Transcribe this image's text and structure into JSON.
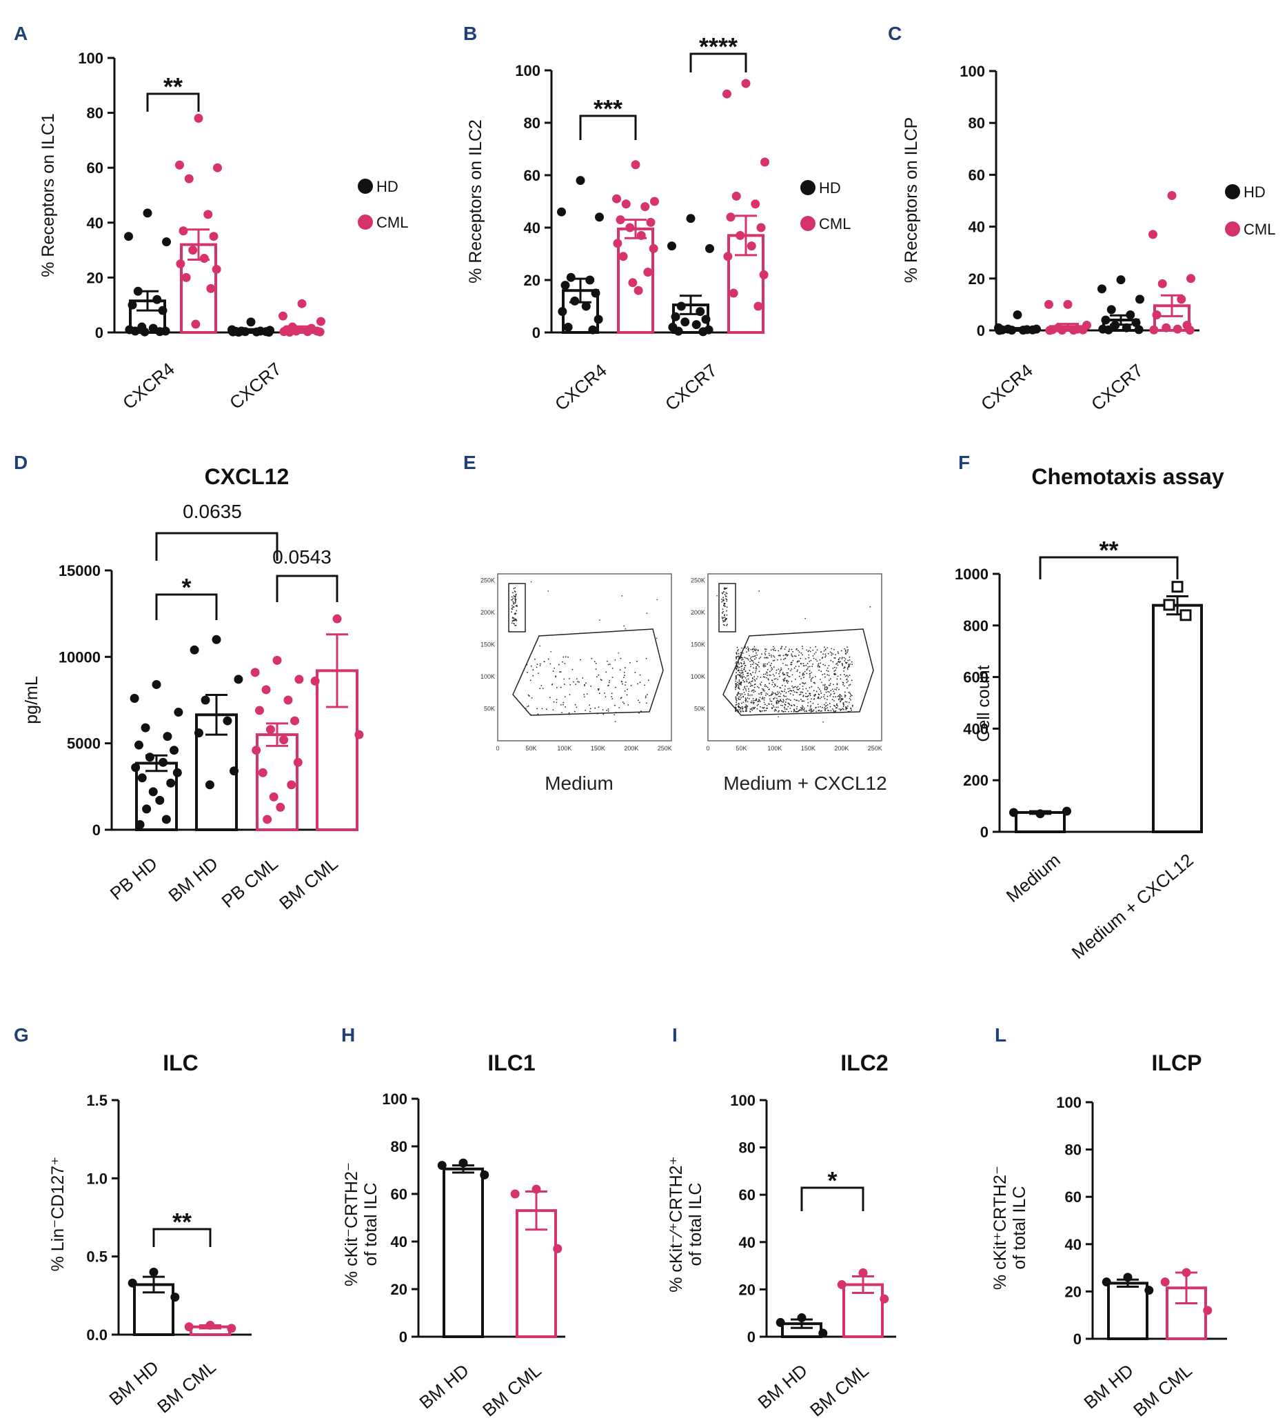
{
  "colors": {
    "hd": "#111111",
    "cml": "#d6336c",
    "panel_label": "#1d3f7a"
  },
  "chart_data": [
    {
      "panel": "A",
      "type": "bar",
      "title": "",
      "ylabel": "% Receptors on ILC1",
      "ylim": [
        0,
        100
      ],
      "yticks": [
        "0",
        "20",
        "40",
        "60",
        "80",
        "100"
      ],
      "categories": [
        "CXCR4",
        "CXCR7"
      ],
      "legend": [
        "HD",
        "CML"
      ],
      "legend_position": "right",
      "series": [
        {
          "name": "HD",
          "values": [
            11.5,
            0.8
          ],
          "sem": [
            3.5,
            0.4
          ],
          "points": [
            [
              43.5,
              35,
              33,
              15,
              12,
              10,
              8,
              2,
              1.5,
              1,
              0.5,
              0.5,
              0.3,
              0.2
            ],
            [
              3.8,
              1,
              0.8,
              0.5,
              0.5,
              0.4,
              0.3,
              0.3,
              0.2,
              0.2,
              0.1,
              0.1
            ]
          ]
        },
        {
          "name": "CML",
          "values": [
            32,
            1.3
          ],
          "sem": [
            5.5,
            0.9
          ],
          "points": [
            [
              78,
              61,
              60,
              56,
              43,
              37,
              35,
              30,
              27,
              25,
              23,
              20,
              16,
              3
            ],
            [
              10.5,
              6,
              4,
              2,
              1.5,
              1,
              0.5,
              0.5,
              0.3,
              0.3,
              0.2,
              0.1
            ]
          ]
        }
      ],
      "annotations": [
        {
          "label": "**",
          "between": [
            "CXCR4 HD",
            "CXCR4 CML"
          ]
        }
      ]
    },
    {
      "panel": "B",
      "type": "bar",
      "title": "",
      "ylabel": "% Receptors on ILC2",
      "ylim": [
        0,
        100
      ],
      "yticks": [
        "0",
        "20",
        "40",
        "60",
        "80",
        "100"
      ],
      "categories": [
        "CXCR4",
        "CXCR7"
      ],
      "legend": [
        "HD",
        "CML"
      ],
      "legend_position": "right",
      "series": [
        {
          "name": "HD",
          "values": [
            16,
            10.5
          ],
          "sem": [
            4.5,
            3.5
          ],
          "points": [
            [
              58,
              46,
              44,
              21,
              20,
              18,
              15,
              12,
              10,
              8,
              5,
              2,
              1
            ],
            [
              43.5,
              33,
              32,
              10,
              8,
              6,
              5,
              4,
              3,
              2,
              1,
              0.5,
              0.3
            ]
          ]
        },
        {
          "name": "CML",
          "values": [
            39.5,
            37
          ],
          "sem": [
            3.5,
            7.5
          ],
          "points": [
            [
              64,
              51,
              50,
              49,
              48,
              43,
              42,
              40,
              37,
              34,
              32,
              29,
              23,
              19,
              16
            ],
            [
              95,
              91,
              65,
              52,
              49,
              44,
              40,
              37,
              33,
              29,
              22,
              15,
              10
            ]
          ]
        }
      ],
      "annotations": [
        {
          "label": "***",
          "between": [
            "CXCR4 HD",
            "CXCR4 CML"
          ]
        },
        {
          "label": "****",
          "between": [
            "CXCR7 HD",
            "CXCR7 CML"
          ]
        }
      ]
    },
    {
      "panel": "C",
      "type": "bar",
      "title": "",
      "ylabel": "% Receptors on ILCP",
      "ylim": [
        0,
        100
      ],
      "yticks": [
        "0",
        "20",
        "40",
        "60",
        "80",
        "100"
      ],
      "categories": [
        "CXCR4",
        "CXCR7"
      ],
      "legend": [
        "HD",
        "CML"
      ],
      "legend_position": "right",
      "series": [
        {
          "name": "HD",
          "values": [
            0.5,
            4
          ],
          "sem": [
            0.4,
            1.8
          ],
          "points": [
            [
              6,
              1,
              0.5,
              0.5,
              0.3,
              0.2,
              0.2,
              0.1,
              0.1,
              0
            ],
            [
              19.5,
              16,
              12,
              8,
              6,
              4,
              3,
              2,
              1,
              0.5,
              0.3,
              0.2
            ]
          ]
        },
        {
          "name": "CML",
          "values": [
            1.5,
            9.5
          ],
          "sem": [
            1,
            4
          ],
          "points": [
            [
              10,
              10,
              2,
              1,
              0.5,
              0.3,
              0.2,
              0.1,
              0.1,
              0
            ],
            [
              52,
              37,
              20,
              18,
              12,
              6,
              2,
              1,
              0.5,
              0.2,
              0.1
            ]
          ]
        }
      ],
      "annotations": []
    },
    {
      "panel": "D",
      "type": "bar",
      "title": "CXCL12",
      "ylabel": "pg/mL",
      "ylim": [
        0,
        15000
      ],
      "yticks": [
        "0",
        "5000",
        "10000",
        "15000"
      ],
      "categories": [
        "PB HD",
        "BM HD",
        "PB CML",
        "BM CML"
      ],
      "bar_colors": [
        "hd",
        "hd",
        "cml",
        "cml"
      ],
      "values": [
        3850,
        6650,
        5500,
        9200
      ],
      "sem": [
        450,
        1150,
        650,
        2100
      ],
      "points": [
        [
          8400,
          7600,
          6800,
          5900,
          5400,
          4900,
          4600,
          4200,
          3900,
          3600,
          3300,
          3000,
          2700,
          2200,
          1700,
          1200,
          600,
          300
        ],
        [
          11000,
          10400,
          8700,
          7500,
          6300,
          5600,
          3400,
          2600
        ],
        [
          9800,
          9100,
          8700,
          8100,
          7500,
          6900,
          6300,
          5800,
          5200,
          4600,
          3900,
          3300,
          2600,
          1900,
          1300,
          600
        ],
        [
          12200,
          8600,
          5500
        ]
      ],
      "annotations": [
        {
          "label": "0.0635",
          "between": [
            "PB HD",
            "PB CML"
          ]
        },
        {
          "label": "*",
          "between": [
            "PB HD",
            "BM HD"
          ]
        },
        {
          "label": "0.0543",
          "between": [
            "PB CML",
            "BM CML"
          ]
        }
      ]
    },
    {
      "panel": "F",
      "type": "bar",
      "title": "Chemotaxis assay",
      "ylabel": "Cell count",
      "ylim": [
        0,
        1000
      ],
      "yticks": [
        "0",
        "200",
        "400",
        "600",
        "800",
        "1000"
      ],
      "categories": [
        "Medium",
        "Medium + CXCL12"
      ],
      "values": [
        75,
        878
      ],
      "sem": [
        5,
        35
      ],
      "points": [
        [
          70,
          75,
          80
        ],
        [
          950,
          880,
          840
        ]
      ],
      "annotations": [
        {
          "label": "**",
          "between": [
            "Medium",
            "Medium + CXCL12"
          ]
        }
      ]
    },
    {
      "panel": "G",
      "type": "bar",
      "title": "ILC",
      "ylabel": "% Lin⁻CD127⁺",
      "ylim": [
        0,
        1.5
      ],
      "yticks": [
        "0.0",
        "0.5",
        "1.0",
        "1.5"
      ],
      "categories": [
        "BM HD",
        "BM CML"
      ],
      "bar_colors": [
        "hd",
        "cml"
      ],
      "values": [
        0.32,
        0.05
      ],
      "sem": [
        0.05,
        0.01
      ],
      "points": [
        [
          0.4,
          0.33,
          0.24
        ],
        [
          0.06,
          0.05,
          0.04
        ]
      ],
      "annotations": [
        {
          "label": "**",
          "between": [
            "BM HD",
            "BM CML"
          ]
        }
      ]
    },
    {
      "panel": "H",
      "type": "bar",
      "title": "ILC1",
      "ylabel": "% cKit⁻CRTH2⁻ of total ILC",
      "ylim": [
        0,
        100
      ],
      "yticks": [
        "0",
        "20",
        "40",
        "60",
        "80",
        "100"
      ],
      "categories": [
        "BM HD",
        "BM CML"
      ],
      "bar_colors": [
        "hd",
        "cml"
      ],
      "values": [
        70.5,
        53
      ],
      "sem": [
        1.5,
        8
      ],
      "points": [
        [
          73,
          72,
          68
        ],
        [
          62,
          60,
          37
        ]
      ],
      "annotations": []
    },
    {
      "panel": "I",
      "type": "bar",
      "title": "ILC2",
      "ylabel": "% cKit⁻⁄⁺CRTH2⁺ of total ILC",
      "ylim": [
        0,
        100
      ],
      "yticks": [
        "0",
        "20",
        "40",
        "60",
        "80",
        "100"
      ],
      "categories": [
        "BM HD",
        "BM CML"
      ],
      "bar_colors": [
        "hd",
        "cml"
      ],
      "values": [
        5.5,
        22
      ],
      "sem": [
        1.8,
        3.5
      ],
      "points": [
        [
          8,
          6,
          1.5
        ],
        [
          27,
          22,
          16
        ]
      ],
      "annotations": [
        {
          "label": "*",
          "between": [
            "BM HD",
            "BM CML"
          ]
        }
      ]
    },
    {
      "panel": "L",
      "type": "bar",
      "title": "ILCP",
      "ylabel": "% cKit⁺CRTH2⁻ of total ILC",
      "ylim": [
        0,
        100
      ],
      "yticks": [
        "0",
        "20",
        "40",
        "60",
        "80",
        "100"
      ],
      "categories": [
        "BM HD",
        "BM CML"
      ],
      "bar_colors": [
        "hd",
        "cml"
      ],
      "values": [
        23.5,
        21.5
      ],
      "sem": [
        1.5,
        6.5
      ],
      "points": [
        [
          26,
          24,
          20.5
        ],
        [
          28,
          24,
          12
        ]
      ],
      "annotations": []
    }
  ],
  "flow": {
    "panel": "E",
    "ticks": [
      "0",
      "50K",
      "100K",
      "150K",
      "200K",
      "250K"
    ],
    "plots": [
      {
        "caption": "Medium",
        "density": "low"
      },
      {
        "caption": "Medium + CXCL12",
        "density": "high"
      }
    ]
  }
}
